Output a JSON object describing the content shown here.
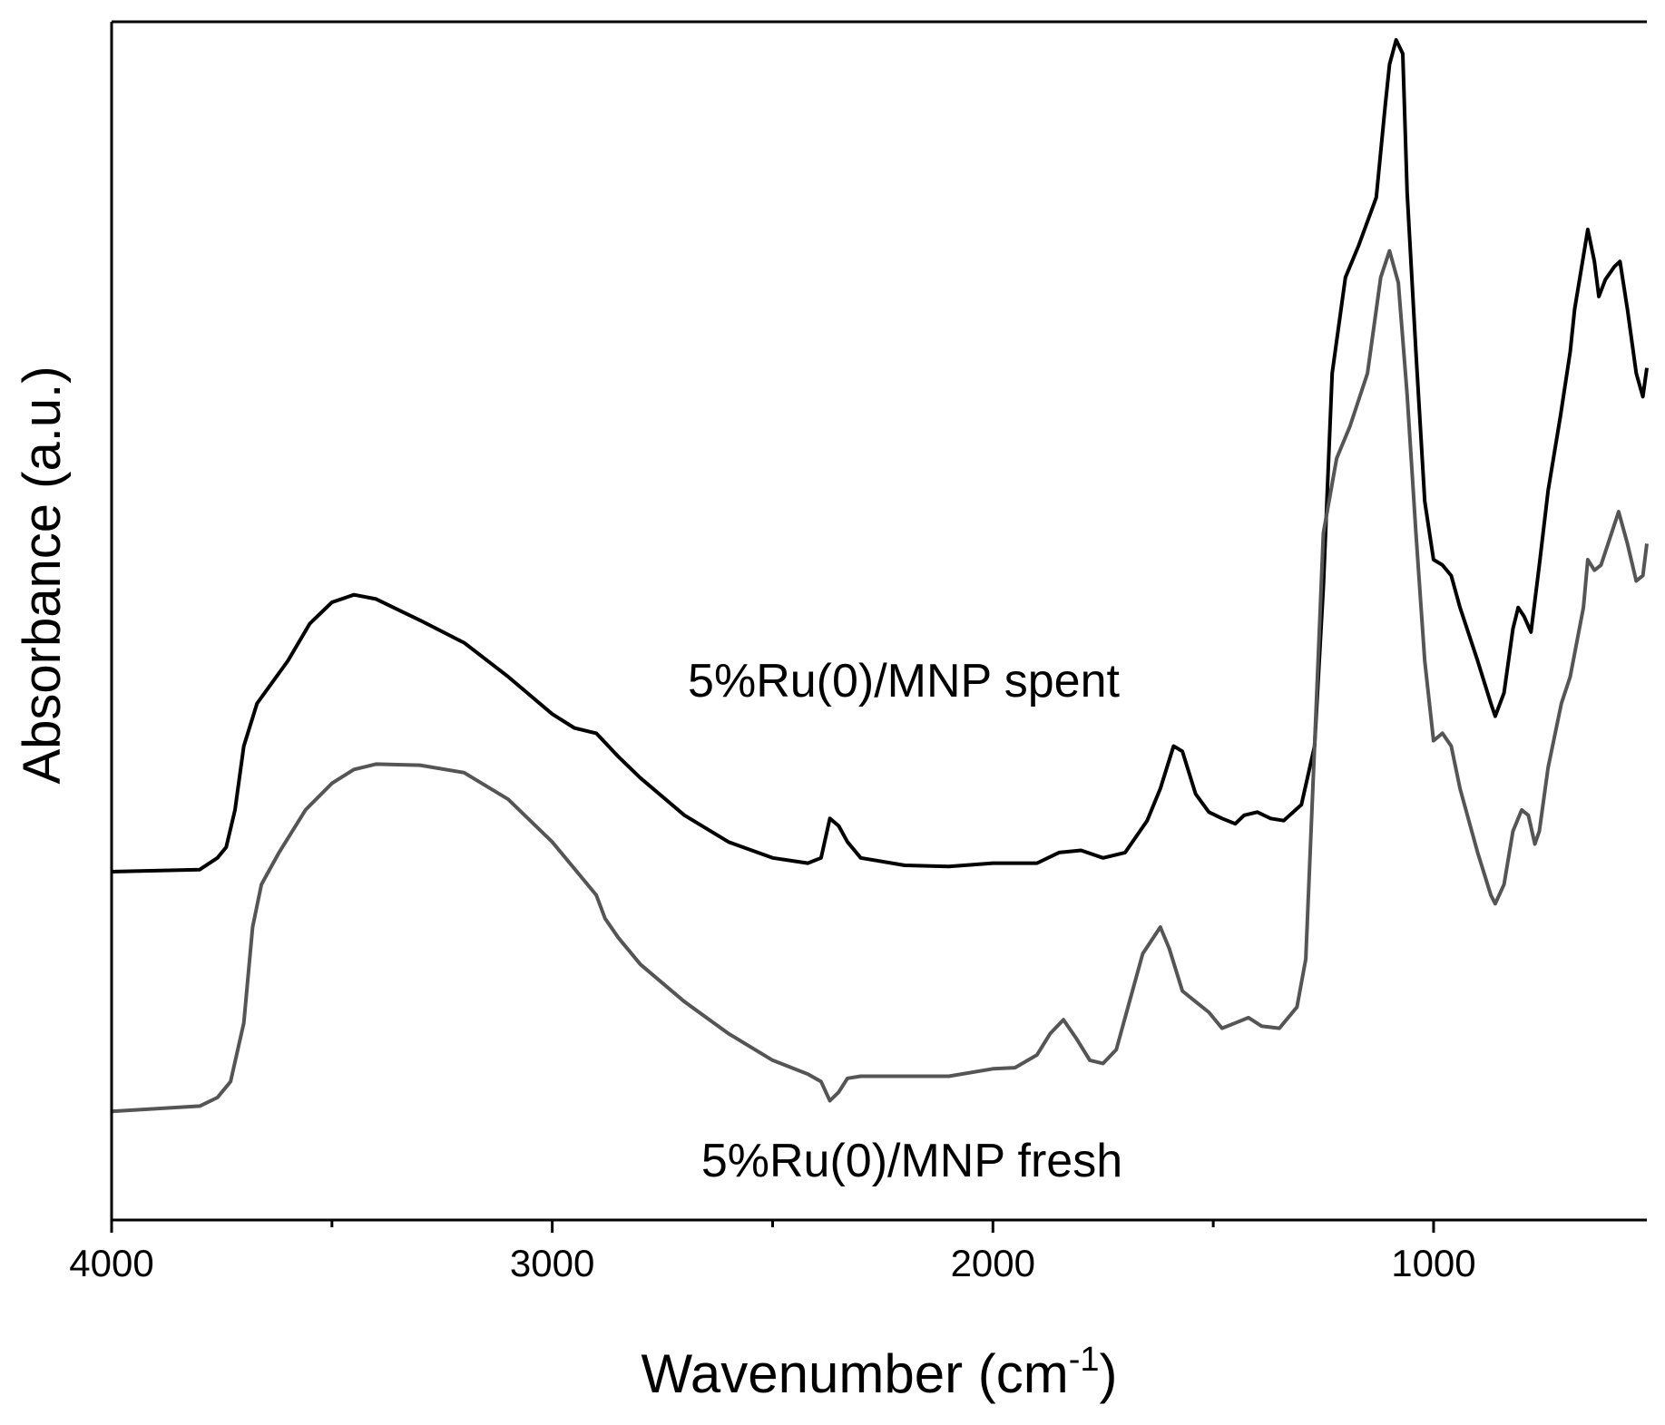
{
  "chart_data": {
    "type": "line",
    "xlabel": "Wavenumber (cm",
    "xlabel_sup": "-1",
    "xlabel_end": ")",
    "ylabel": "Absorbance (a.u.)",
    "xlim": [
      4000,
      516
    ],
    "ylim": [
      0,
      1125
    ],
    "xticks": [
      4000,
      3000,
      2000,
      1000
    ],
    "xminor_ticks": [
      3500,
      2500,
      1500
    ],
    "grid": false,
    "annotations": [
      "5%Ru(0)/MNP spent",
      "5%Ru(0)/MNP fresh"
    ],
    "series": [
      {
        "name": "5%Ru(0)/MNP spent",
        "color": "#000000",
        "x": [
          4000,
          3800,
          3760,
          3740,
          3720,
          3700,
          3670,
          3600,
          3550,
          3500,
          3450,
          3400,
          3350,
          3300,
          3200,
          3100,
          3000,
          2950,
          2900,
          2850,
          2800,
          2700,
          2600,
          2500,
          2420,
          2390,
          2370,
          2350,
          2330,
          2300,
          2200,
          2100,
          2000,
          1900,
          1850,
          1800,
          1750,
          1700,
          1650,
          1620,
          1590,
          1570,
          1540,
          1510,
          1480,
          1450,
          1430,
          1400,
          1370,
          1340,
          1300,
          1270,
          1250,
          1230,
          1200,
          1170,
          1130,
          1110,
          1100,
          1085,
          1070,
          1060,
          1040,
          1020,
          1000,
          980,
          960,
          940,
          900,
          870,
          860,
          840,
          820,
          808,
          795,
          779,
          760,
          740,
          712,
          690,
          680,
          660,
          650,
          635,
          625,
          610,
          590,
          577,
          560,
          540,
          525,
          516
        ],
        "values": [
          327,
          329,
          340,
          350,
          385,
          445,
          485,
          525,
          560,
          580,
          587,
          583,
          573,
          563,
          542,
          510,
          475,
          462,
          457,
          435,
          415,
          380,
          355,
          340,
          335,
          340,
          377,
          370,
          355,
          340,
          333,
          332,
          335,
          335,
          345,
          347,
          340,
          345,
          375,
          405,
          445,
          440,
          400,
          383,
          377,
          372,
          380,
          383,
          377,
          375,
          390,
          445,
          595,
          795,
          885,
          915,
          960,
          1045,
          1085,
          1108,
          1095,
          965,
          815,
          675,
          620,
          615,
          605,
          575,
          525,
          485,
          473,
          495,
          555,
          575,
          567,
          552,
          615,
          685,
          755,
          815,
          855,
          905,
          930,
          900,
          867,
          883,
          895,
          900,
          855,
          795,
          773,
          800
        ]
      },
      {
        "name": "5%Ru(0)/MNP fresh",
        "color": "#555555",
        "x": [
          4000,
          3800,
          3760,
          3730,
          3700,
          3680,
          3660,
          3620,
          3560,
          3500,
          3450,
          3400,
          3300,
          3200,
          3100,
          3000,
          2950,
          2900,
          2880,
          2850,
          2800,
          2700,
          2600,
          2500,
          2420,
          2390,
          2370,
          2350,
          2330,
          2300,
          2200,
          2100,
          2000,
          1950,
          1900,
          1870,
          1840,
          1810,
          1780,
          1750,
          1720,
          1690,
          1660,
          1620,
          1600,
          1570,
          1540,
          1510,
          1480,
          1450,
          1420,
          1390,
          1350,
          1310,
          1290,
          1270,
          1250,
          1220,
          1190,
          1150,
          1120,
          1100,
          1080,
          1060,
          1040,
          1020,
          1000,
          980,
          960,
          940,
          900,
          870,
          860,
          840,
          820,
          800,
          785,
          770,
          760,
          740,
          710,
          690,
          660,
          650,
          635,
          620,
          600,
          580,
          560,
          540,
          525,
          516
        ],
        "values": [
          102,
          107,
          115,
          130,
          185,
          275,
          315,
          345,
          385,
          410,
          423,
          428,
          427,
          420,
          395,
          355,
          330,
          305,
          283,
          265,
          240,
          205,
          175,
          150,
          137,
          130,
          112,
          120,
          133,
          135,
          135,
          135,
          142,
          143,
          155,
          175,
          188,
          170,
          150,
          147,
          160,
          205,
          250,
          275,
          255,
          215,
          205,
          195,
          180,
          185,
          190,
          182,
          180,
          200,
          245,
          445,
          645,
          715,
          745,
          795,
          885,
          910,
          880,
          775,
          645,
          525,
          450,
          457,
          445,
          405,
          345,
          305,
          297,
          315,
          365,
          385,
          380,
          353,
          365,
          425,
          485,
          510,
          575,
          620,
          610,
          615,
          640,
          665,
          635,
          600,
          605,
          635
        ]
      }
    ]
  }
}
